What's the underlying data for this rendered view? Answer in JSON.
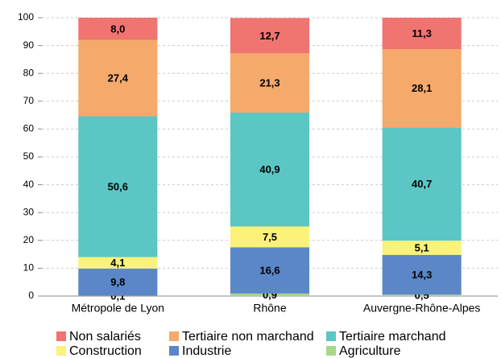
{
  "chart_data": {
    "type": "stacked_bar",
    "categories": [
      "Métropole de Lyon",
      "Rhône",
      "Auvergne-Rhône-Alpes"
    ],
    "series": [
      {
        "name": "Non salariés",
        "color": "#f07470",
        "values": [
          8.0,
          12.7,
          11.3
        ],
        "value_labels": [
          "8,0",
          "12,7",
          "11,3"
        ]
      },
      {
        "name": "Tertiaire non marchand",
        "color": "#f5a96b",
        "values": [
          27.4,
          21.3,
          28.1
        ],
        "value_labels": [
          "27,4",
          "21,3",
          "28,1"
        ]
      },
      {
        "name": "Tertiaire marchand",
        "color": "#5bc6c4",
        "values": [
          50.6,
          40.9,
          40.7
        ],
        "value_labels": [
          "50,6",
          "40,9",
          "40,7"
        ]
      },
      {
        "name": "Construction",
        "color": "#fbf27a",
        "values": [
          4.1,
          7.5,
          5.1
        ],
        "value_labels": [
          "4,1",
          "7,5",
          "5,1"
        ]
      },
      {
        "name": "Industrie",
        "color": "#5b87c8",
        "values": [
          9.8,
          16.6,
          14.3
        ],
        "value_labels": [
          "9,8",
          "16,6",
          "14,3"
        ]
      },
      {
        "name": "Agriculture",
        "color": "#a7d88a",
        "values": [
          0.1,
          0.9,
          0.5
        ],
        "value_labels": [
          "0,1",
          "0,9",
          "0,5"
        ]
      }
    ],
    "ylim": [
      0,
      100
    ],
    "yticks": [
      0,
      10,
      20,
      30,
      40,
      50,
      60,
      70,
      80,
      90,
      100
    ],
    "grid": true
  }
}
